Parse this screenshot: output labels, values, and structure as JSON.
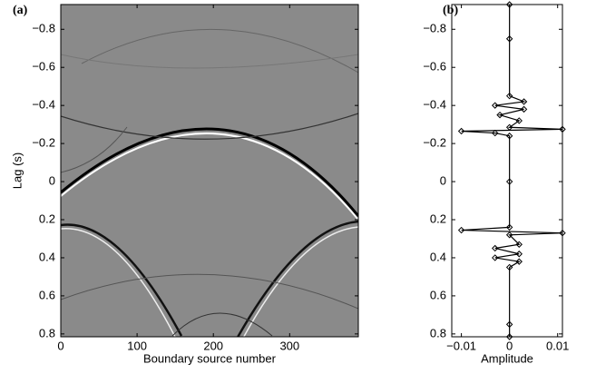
{
  "chart_data": [
    {
      "type": "image",
      "title": "(a)",
      "x_label": "Boundary source number",
      "y_label": "Lag (s)",
      "xlim": [
        0,
        390
      ],
      "xticks": [
        0,
        100,
        200,
        300
      ],
      "ylim": [
        -0.93,
        0.815
      ],
      "yticks": [
        {
          "value": -0.8,
          "label": "−0.8"
        },
        {
          "value": -0.6,
          "label": "−0.6"
        },
        {
          "value": -0.4,
          "label": "−0.4"
        },
        {
          "value": -0.2,
          "label": "−0.2"
        },
        0,
        0.2,
        0.4,
        0.6,
        0.8
      ]
    },
    {
      "type": "trace",
      "title": "(b)",
      "x_label": "Amplitude",
      "xlim": [
        -0.012,
        0.011
      ],
      "xticks": [
        {
          "value": -0.01,
          "label": "−0.01"
        },
        0,
        0.01
      ],
      "ylim": [
        -0.93,
        0.815
      ],
      "yticks": [
        {
          "value": -0.8,
          "label": "−0.8"
        },
        {
          "value": -0.6,
          "label": "−0.6"
        },
        {
          "value": -0.4,
          "label": "−0.4"
        },
        {
          "value": -0.2,
          "label": "−0.2"
        },
        0,
        0.2,
        0.4,
        0.6,
        0.8
      ],
      "color": "#000000",
      "y": [
        -0.93,
        -0.75,
        -0.45,
        -0.42,
        -0.4,
        -0.38,
        -0.35,
        -0.32,
        -0.285,
        -0.275,
        -0.265,
        -0.255,
        -0.24,
        0,
        0.24,
        0.255,
        0.27,
        0.28,
        0.33,
        0.35,
        0.38,
        0.4,
        0.42,
        0.45,
        0.75,
        0.815
      ],
      "values": [
        0,
        0,
        0,
        0.003,
        -0.003,
        0.003,
        -0.002,
        0.002,
        0,
        0.011,
        -0.01,
        -0.003,
        0,
        0,
        0,
        -0.01,
        0.011,
        0,
        0.002,
        -0.003,
        0.002,
        -0.003,
        0.002,
        0,
        0,
        0
      ]
    }
  ]
}
